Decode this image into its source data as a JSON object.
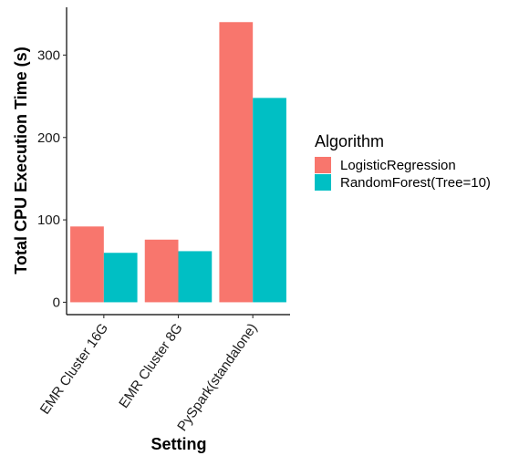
{
  "chart_data": {
    "type": "bar",
    "xlabel": "Setting",
    "ylabel": "Total CPU Execution Time (s)",
    "categories": [
      "EMR Cluster 16G",
      "EMR Cluster 8G",
      "PySpark(standalone)"
    ],
    "series": [
      {
        "name": "LogisticRegression",
        "values": [
          92,
          76,
          340
        ],
        "color": "#F8766D"
      },
      {
        "name": "RandomForest(Tree=10)",
        "values": [
          60,
          62,
          248
        ],
        "color": "#00BFC4"
      }
    ],
    "ylim": [
      -15,
      358
    ],
    "yticks": [
      0,
      100,
      200,
      300
    ],
    "grid": false,
    "legend": {
      "title": "Algorithm",
      "position": "right"
    },
    "theme": {
      "background": "#ffffff",
      "axis_color": "#000000"
    }
  }
}
